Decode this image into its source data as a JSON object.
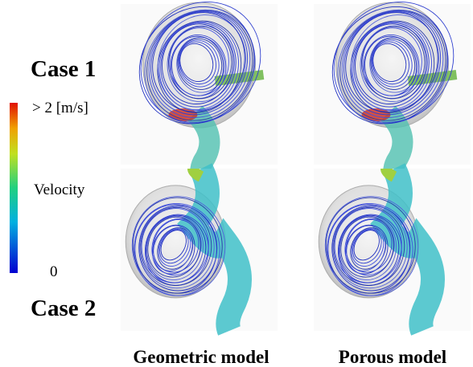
{
  "row_labels": [
    "Case 1",
    "Case 2"
  ],
  "colorbar": {
    "max_label": "> 2 [m/s]",
    "title": "Velocity",
    "min_label": "0"
  },
  "column_labels": [
    "Geometric model",
    "Porous model"
  ]
}
